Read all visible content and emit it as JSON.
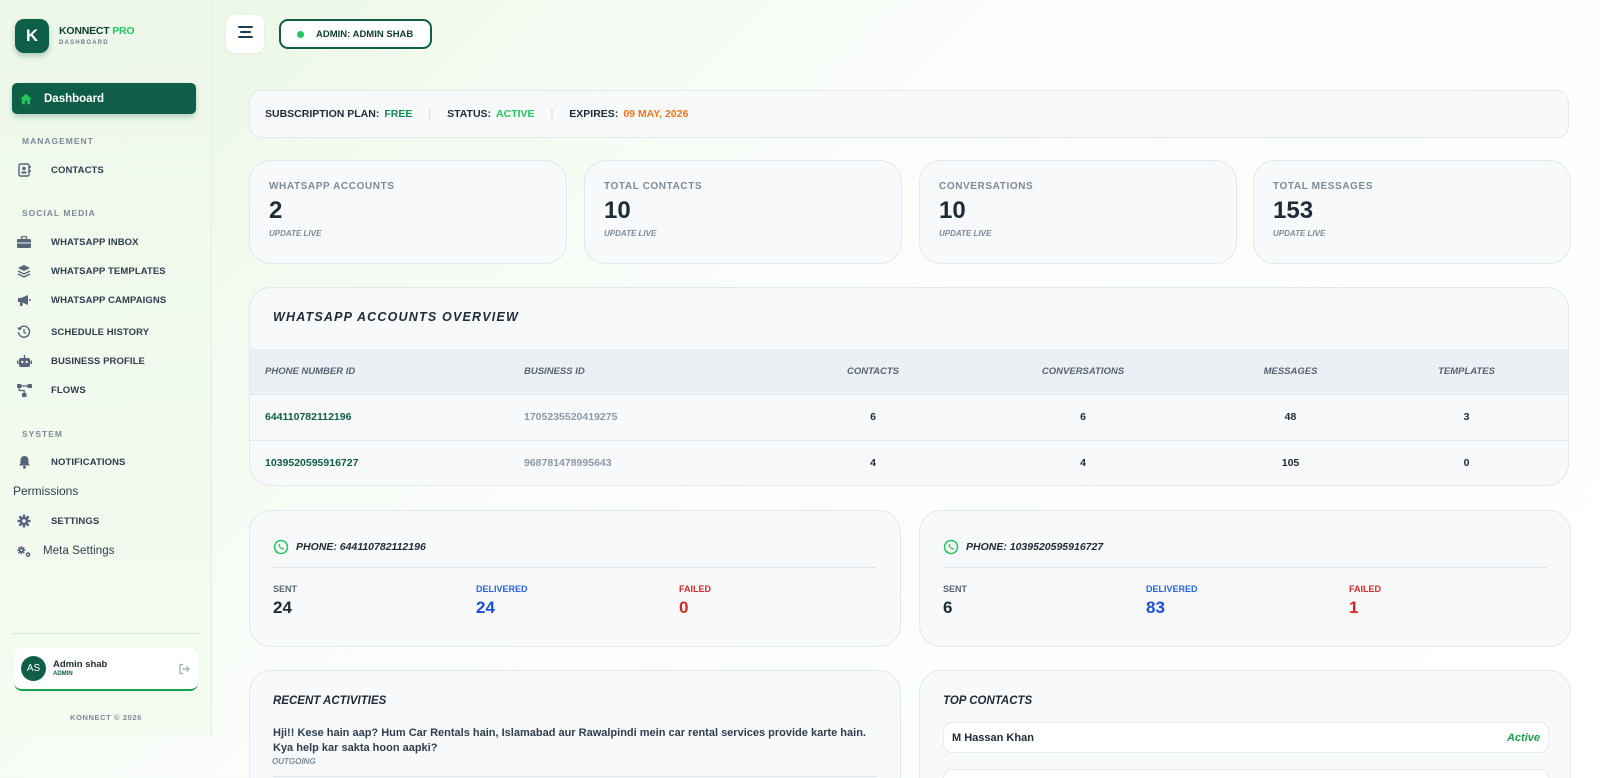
{
  "brand": {
    "name_main": "KONNECT",
    "name_accent": "PRO",
    "subtitle": "DASHBOARD",
    "logo_letter": "K"
  },
  "nav": {
    "active": {
      "label": "Dashboard",
      "icon": "home-icon"
    },
    "sections": {
      "management": "MANAGEMENT",
      "social_media": "SOCIAL MEDIA",
      "system": "SYSTEM"
    },
    "items": {
      "contacts": "CONTACTS",
      "whatsapp_inbox": "WHATSAPP INBOX",
      "whatsapp_templates": "WHATSAPP TEMPLATES",
      "whatsapp_campaigns": "WHATSAPP CAMPAIGNS",
      "schedule_history": "SCHEDULE HISTORY",
      "business_profile": "BUSINESS PROFILE",
      "flows": "FLOWS",
      "notifications": "NOTIFICATIONS",
      "permissions": "Permissions",
      "settings": "SETTINGS",
      "meta_settings": "Meta Settings"
    }
  },
  "user": {
    "initials": "AS",
    "name": "Admin shab",
    "role": "ADMIN"
  },
  "footer": {
    "copyright": "KONNECT © 2026"
  },
  "topbar": {
    "admin_label": "ADMIN: ADMIN SHAB"
  },
  "subscription": {
    "plan_label": "SUBSCRIPTION PLAN:",
    "plan_value": "FREE",
    "status_label": "STATUS:",
    "status_value": "ACTIVE",
    "expires_label": "EXPIRES:",
    "expires_value": "09 MAY, 2026",
    "separator": "|"
  },
  "stats": [
    {
      "label": "WHATSAPP ACCOUNTS",
      "value": "2",
      "note": "UPDATE LIVE"
    },
    {
      "label": "TOTAL CONTACTS",
      "value": "10",
      "note": "UPDATE LIVE"
    },
    {
      "label": "CONVERSATIONS",
      "value": "10",
      "note": "UPDATE LIVE"
    },
    {
      "label": "TOTAL MESSAGES",
      "value": "153",
      "note": "UPDATE LIVE"
    }
  ],
  "overview": {
    "title": "WHATSAPP ACCOUNTS OVERVIEW",
    "columns": [
      "PHONE NUMBER ID",
      "BUSINESS ID",
      "CONTACTS",
      "CONVERSATIONS",
      "MESSAGES",
      "TEMPLATES"
    ],
    "rows": [
      [
        "644110782112196",
        "1705235520419275",
        "6",
        "6",
        "48",
        "3"
      ],
      [
        "1039520595916727",
        "968781478995643",
        "4",
        "4",
        "105",
        "0"
      ]
    ]
  },
  "phones": [
    {
      "title": "PHONE: 644110782112196",
      "sent_label": "SENT",
      "sent": "24",
      "delivered_label": "DELIVERED",
      "delivered": "24",
      "failed_label": "FAILED",
      "failed": "0"
    },
    {
      "title": "PHONE: 1039520595916727",
      "sent_label": "SENT",
      "sent": "6",
      "delivered_label": "DELIVERED",
      "delivered": "83",
      "failed_label": "FAILED",
      "failed": "1"
    }
  ],
  "recent": {
    "title": "RECENT ACTIVITIES",
    "items": [
      {
        "text": "Hji!! Kese hain aap? Hum Car Rentals hain, Islamabad aur Rawalpindi mein car rental services provide karte hain. Kya help kar sakta hoon aapki?",
        "direction": "OUTGOING"
      }
    ]
  },
  "top_contacts": {
    "title": "TOP CONTACTS",
    "items": [
      {
        "name": "M Hassan Khan",
        "status": "Active"
      }
    ]
  },
  "colors": {
    "brand": "#0f5e47",
    "accent": "#22c55e",
    "orange": "#f97316",
    "blue": "#2563eb",
    "red": "#dc2626"
  }
}
